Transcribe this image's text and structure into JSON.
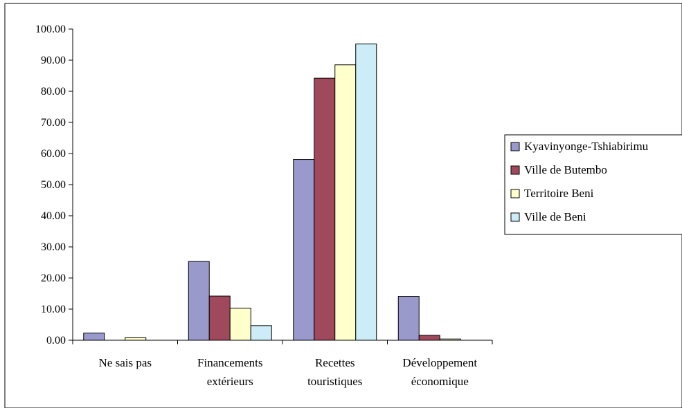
{
  "chart_data": {
    "type": "bar",
    "title": "",
    "xlabel": "",
    "ylabel": "",
    "categories": [
      [
        "Ne sais pas"
      ],
      [
        "Financements",
        "extérieurs"
      ],
      [
        "Recettes",
        "touristiques"
      ],
      [
        "Développement",
        "économique"
      ]
    ],
    "series": [
      {
        "name": "Kyavinyonge-Tshiabirimu",
        "color": "#9999cc",
        "values": [
          2.3,
          25.3,
          58.1,
          14.1
        ]
      },
      {
        "name": "Ville de Butembo",
        "color": "#a0495c",
        "values": [
          0.0,
          14.2,
          84.2,
          1.6
        ]
      },
      {
        "name": "Territoire Beni",
        "color": "#ffffcc",
        "values": [
          0.8,
          10.3,
          88.5,
          0.4
        ]
      },
      {
        "name": "Ville de Beni",
        "color": "#ccecf8",
        "values": [
          0.0,
          4.7,
          95.2,
          0.0
        ]
      }
    ],
    "ylim": [
      0,
      100
    ],
    "yticks": [
      "0.00",
      "10.00",
      "20.00",
      "30.00",
      "40.00",
      "50.00",
      "60.00",
      "70.00",
      "80.00",
      "90.00",
      "100.00"
    ],
    "grid": false,
    "legend": "right"
  }
}
